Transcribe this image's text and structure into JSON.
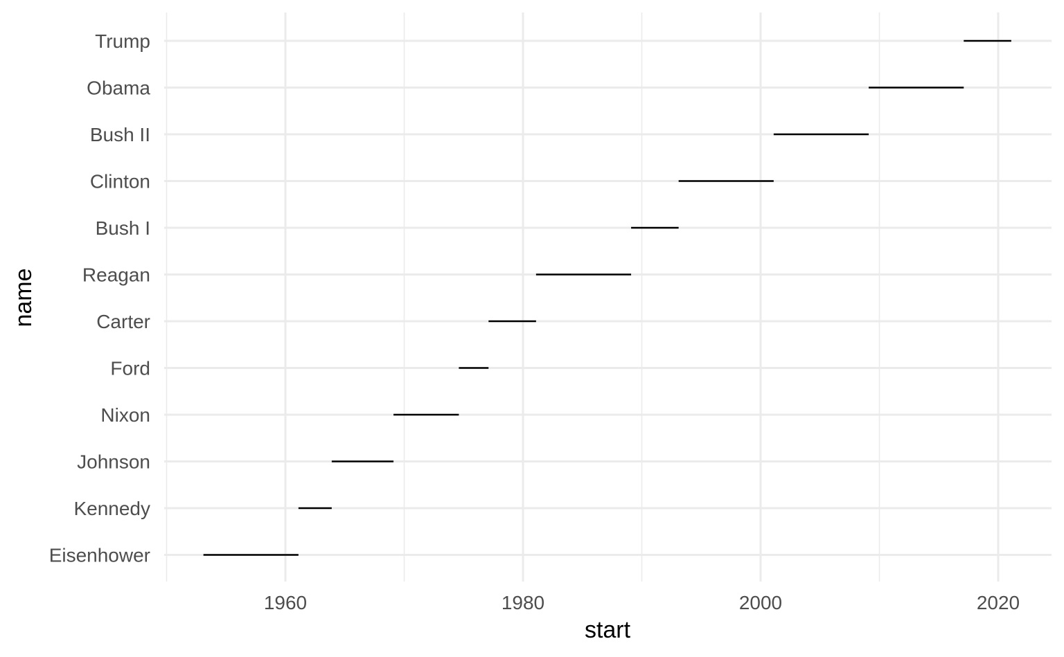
{
  "chart_data": {
    "type": "segment",
    "xlabel": "start",
    "ylabel": "name",
    "xlim": [
      1950,
      2024.5
    ],
    "x_ticks": [
      1960,
      1980,
      2000,
      2020
    ],
    "x_minor_ticks": [
      1950,
      1970,
      1990,
      2010
    ],
    "grid": true,
    "legend": "none",
    "categories": [
      "Eisenhower",
      "Kennedy",
      "Johnson",
      "Nixon",
      "Ford",
      "Carter",
      "Reagan",
      "Bush I",
      "Clinton",
      "Bush II",
      "Obama",
      "Trump"
    ],
    "segments": [
      {
        "name": "Eisenhower",
        "start": 1953.1,
        "end": 1961.1
      },
      {
        "name": "Kennedy",
        "start": 1961.1,
        "end": 1963.9
      },
      {
        "name": "Johnson",
        "start": 1963.9,
        "end": 1969.1
      },
      {
        "name": "Nixon",
        "start": 1969.1,
        "end": 1974.6
      },
      {
        "name": "Ford",
        "start": 1974.6,
        "end": 1977.1
      },
      {
        "name": "Carter",
        "start": 1977.1,
        "end": 1981.1
      },
      {
        "name": "Reagan",
        "start": 1981.1,
        "end": 1989.1
      },
      {
        "name": "Bush I",
        "start": 1989.1,
        "end": 1993.1
      },
      {
        "name": "Clinton",
        "start": 1993.1,
        "end": 2001.1
      },
      {
        "name": "Bush II",
        "start": 2001.1,
        "end": 2009.1
      },
      {
        "name": "Obama",
        "start": 2009.1,
        "end": 2017.1
      },
      {
        "name": "Trump",
        "start": 2017.1,
        "end": 2021.1
      }
    ],
    "colors": {
      "segment": "#000000",
      "grid": "#ebebeb",
      "tick_label": "#4d4d4d",
      "axis_title": "#000000",
      "background": "#ffffff"
    }
  }
}
